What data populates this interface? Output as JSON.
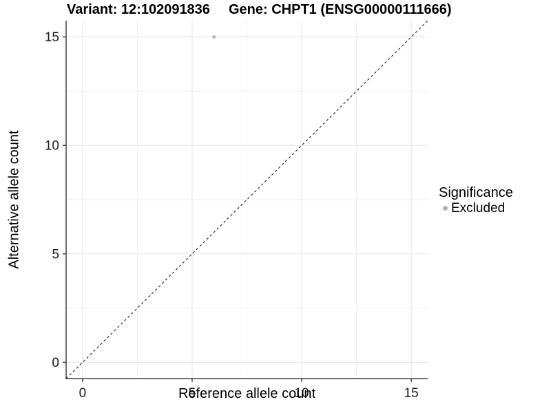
{
  "colors": {
    "background": "#ffffff",
    "grid_major": "#e3e3e3",
    "grid_minor": "#efefef",
    "axis_line": "#404040",
    "tick_label": "#1a1a1a",
    "dashed_line": "#1a1a1a",
    "point": "#bcbcbc",
    "legend_point": "#b0b0b0"
  },
  "titles": {
    "variant": "Variant: 12:102091836",
    "gene": "Gene: CHPT1 (ENSG00000111666)"
  },
  "axis_x": {
    "label": "Reference allele count"
  },
  "axis_y": {
    "label": "Alternative allele count"
  },
  "legend": {
    "title": "Significance",
    "items": [
      {
        "label": "Excluded"
      }
    ]
  },
  "chart_data": {
    "type": "scatter",
    "title_left": "Variant: 12:102091836",
    "title_right": "Gene: CHPT1 (ENSG00000111666)",
    "xlabel": "Reference allele count",
    "ylabel": "Alternative allele count",
    "xlim": [
      -0.75,
      15.75
    ],
    "ylim": [
      -0.75,
      15.75
    ],
    "x_ticks": [
      0,
      5,
      10,
      15
    ],
    "y_ticks": [
      0,
      5,
      10,
      15
    ],
    "x_minor_ticks": [
      2.5,
      7.5,
      12.5
    ],
    "y_minor_ticks": [
      2.5,
      7.5,
      12.5
    ],
    "grid": "major+minor on white panel",
    "axis_lines": "left and bottom only",
    "legend_position": "right",
    "legend_title": "Significance",
    "reference_line": {
      "type": "identity y=x",
      "style": "dashed",
      "color": "#1a1a1a"
    },
    "series": [
      {
        "name": "Excluded",
        "color": "#bcbcbc",
        "points": [
          {
            "x": 6,
            "y": 15
          }
        ]
      }
    ]
  }
}
